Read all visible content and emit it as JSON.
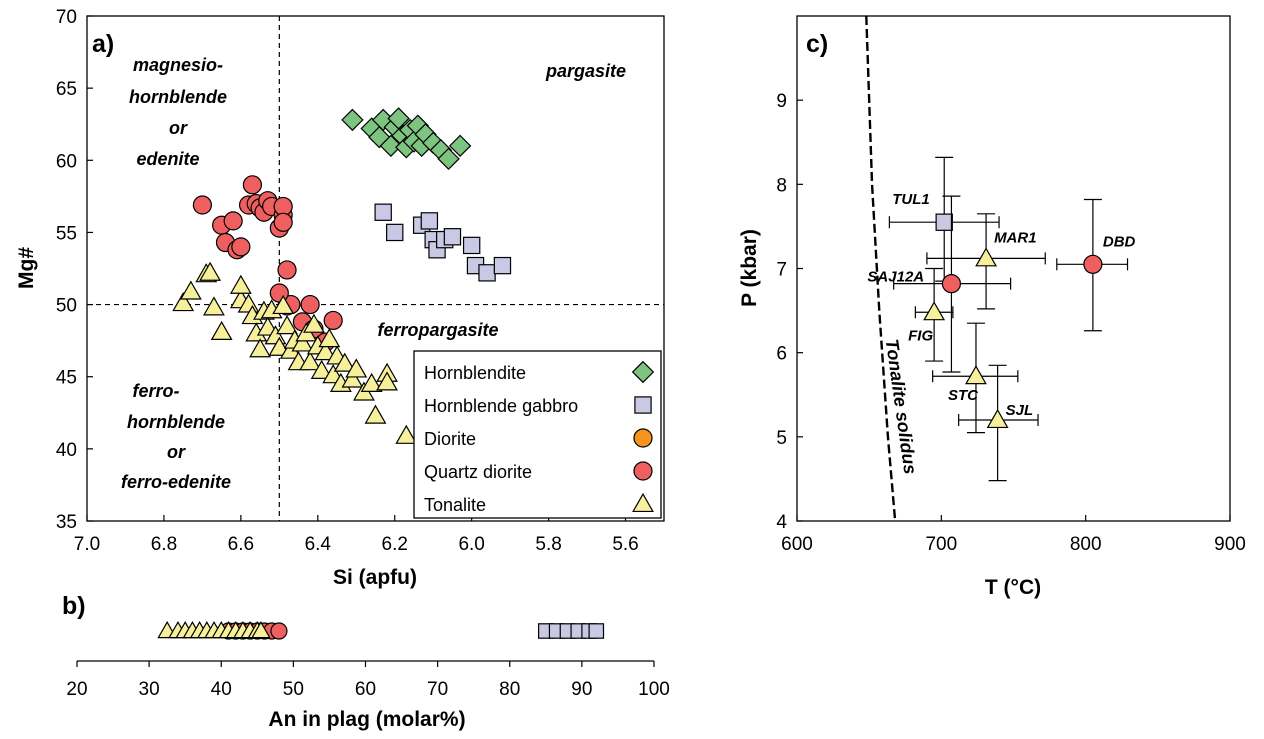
{
  "symbols": {
    "Hornblendite": {
      "shape": "diamond",
      "fill": "#7cc47f"
    },
    "Hornblende gabbro": {
      "shape": "square",
      "fill": "#c9c9e6"
    },
    "Diorite": {
      "shape": "circle",
      "fill": "#f7941d"
    },
    "Quartz diorite": {
      "shape": "circle",
      "fill": "#ef5f5f"
    },
    "Tonalite": {
      "shape": "triangle",
      "fill": "#f6f09a"
    }
  },
  "chart_data": [
    {
      "panel": "a)",
      "type": "scatter",
      "xlabel": "Si (apfu)",
      "ylabel": "Mg#",
      "xlim": [
        7.0,
        5.5
      ],
      "ylim": [
        35,
        70
      ],
      "x_reversed": true,
      "xticks": [
        "7.0",
        "6.8",
        "6.6",
        "6.4",
        "6.2",
        "6.0",
        "5.8",
        "5.6"
      ],
      "yticks": [
        "35",
        "40",
        "45",
        "50",
        "55",
        "60",
        "65",
        "70"
      ],
      "reference_lines": {
        "vertical_x": 6.5,
        "horizontal_y": 50
      },
      "field_labels": [
        {
          "lines": [
            "magnesio-",
            "hornblende",
            "or",
            "edenite"
          ]
        },
        {
          "lines": [
            "pargasite"
          ]
        },
        {
          "lines": [
            "ferropargasite"
          ]
        },
        {
          "lines": [
            "ferro-",
            "hornblende",
            "or",
            "ferro-edenite"
          ]
        }
      ],
      "legend": [
        "Hornblendite",
        "Hornblende gabbro",
        "Diorite",
        "Quartz diorite",
        "Tonalite"
      ],
      "legend_position": "bottom-right",
      "series": [
        {
          "name": "Hornblendite",
          "points": [
            [
              6.31,
              62.8
            ],
            [
              6.26,
              62.2
            ],
            [
              6.24,
              61.6
            ],
            [
              6.23,
              62.8
            ],
            [
              6.21,
              61.0
            ],
            [
              6.2,
              62.3
            ],
            [
              6.19,
              62.9
            ],
            [
              6.18,
              61.7
            ],
            [
              6.17,
              60.9
            ],
            [
              6.16,
              62.1
            ],
            [
              6.15,
              61.3
            ],
            [
              6.14,
              62.4
            ],
            [
              6.13,
              61.0
            ],
            [
              6.12,
              61.8
            ],
            [
              6.1,
              61.2
            ],
            [
              6.08,
              60.7
            ],
            [
              6.06,
              60.1
            ],
            [
              6.03,
              61.0
            ]
          ]
        },
        {
          "name": "Hornblende gabbro",
          "points": [
            [
              6.23,
              56.4
            ],
            [
              6.2,
              55.0
            ],
            [
              6.13,
              55.5
            ],
            [
              6.11,
              55.8
            ],
            [
              6.1,
              54.5
            ],
            [
              6.09,
              53.8
            ],
            [
              6.07,
              54.5
            ],
            [
              6.05,
              54.7
            ],
            [
              6.0,
              54.1
            ],
            [
              5.99,
              52.7
            ],
            [
              5.96,
              52.2
            ],
            [
              5.92,
              52.7
            ]
          ]
        },
        {
          "name": "Quartz diorite",
          "points": [
            [
              6.7,
              56.9
            ],
            [
              6.65,
              55.5
            ],
            [
              6.64,
              54.3
            ],
            [
              6.62,
              55.8
            ],
            [
              6.61,
              53.8
            ],
            [
              6.6,
              54.0
            ],
            [
              6.58,
              56.9
            ],
            [
              6.57,
              58.3
            ],
            [
              6.56,
              57.0
            ],
            [
              6.55,
              56.7
            ],
            [
              6.54,
              56.4
            ],
            [
              6.53,
              57.2
            ],
            [
              6.52,
              56.8
            ],
            [
              6.5,
              55.3
            ],
            [
              6.49,
              56.2
            ],
            [
              6.49,
              56.8
            ],
            [
              6.48,
              52.4
            ],
            [
              6.48,
              49.9
            ],
            [
              6.47,
              50.0
            ],
            [
              6.44,
              48.8
            ],
            [
              6.42,
              50.0
            ],
            [
              6.41,
              48.3
            ],
            [
              6.38,
              47.4
            ],
            [
              6.36,
              48.9
            ],
            [
              6.49,
              55.7
            ],
            [
              6.5,
              50.8
            ]
          ]
        },
        {
          "name": "Tonalite",
          "points": [
            [
              6.75,
              50.1
            ],
            [
              6.73,
              50.9
            ],
            [
              6.69,
              52.1
            ],
            [
              6.68,
              52.2
            ],
            [
              6.67,
              49.8
            ],
            [
              6.65,
              48.1
            ],
            [
              6.6,
              50.3
            ],
            [
              6.6,
              51.3
            ],
            [
              6.58,
              50.0
            ],
            [
              6.57,
              49.2
            ],
            [
              6.56,
              48.0
            ],
            [
              6.55,
              46.9
            ],
            [
              6.54,
              49.5
            ],
            [
              6.53,
              48.4
            ],
            [
              6.52,
              49.6
            ],
            [
              6.51,
              47.8
            ],
            [
              6.5,
              47.0
            ],
            [
              6.49,
              49.9
            ],
            [
              6.48,
              48.5
            ],
            [
              6.47,
              46.8
            ],
            [
              6.46,
              47.5
            ],
            [
              6.45,
              46.0
            ],
            [
              6.44,
              47.3
            ],
            [
              6.43,
              48.0
            ],
            [
              6.42,
              46.0
            ],
            [
              6.41,
              48.6
            ],
            [
              6.4,
              47.1
            ],
            [
              6.39,
              45.4
            ],
            [
              6.38,
              46.7
            ],
            [
              6.37,
              47.6
            ],
            [
              6.36,
              45.1
            ],
            [
              6.35,
              46.4
            ],
            [
              6.34,
              44.5
            ],
            [
              6.33,
              45.9
            ],
            [
              6.31,
              44.8
            ],
            [
              6.3,
              45.5
            ],
            [
              6.28,
              43.9
            ],
            [
              6.26,
              44.5
            ],
            [
              6.25,
              42.3
            ],
            [
              6.22,
              45.2
            ],
            [
              6.22,
              44.6
            ],
            [
              6.17,
              40.9
            ]
          ]
        }
      ]
    },
    {
      "panel": "b)",
      "type": "scatter",
      "xlabel": "An in plag (molar%)",
      "xlim": [
        20,
        100
      ],
      "xticks": [
        "20",
        "30",
        "40",
        "50",
        "60",
        "70",
        "80",
        "90",
        "100"
      ],
      "series": [
        {
          "name": "Tonalite",
          "x": [
            32.5,
            34,
            35,
            36,
            37,
            38,
            39,
            40,
            41,
            42,
            43,
            44,
            45,
            45.5
          ]
        },
        {
          "name": "Quartz diorite",
          "x": [
            41,
            42,
            43,
            44,
            45,
            46,
            47,
            48
          ]
        },
        {
          "name": "Hornblende gabbro",
          "x": [
            85,
            86.5,
            88,
            89.5,
            91,
            92
          ]
        }
      ]
    },
    {
      "panel": "c)",
      "type": "scatter",
      "xlabel": "T (°C)",
      "ylabel": "P (kbar)",
      "xlim": [
        600,
        900
      ],
      "ylim": [
        4,
        10
      ],
      "xticks": [
        "600",
        "700",
        "800",
        "900"
      ],
      "yticks": [
        "4",
        "5",
        "6",
        "7",
        "8",
        "9"
      ],
      "curve_label": "Tonalite solidus",
      "curve": [
        [
          648,
          10
        ],
        [
          652,
          8.0
        ],
        [
          657,
          6.5
        ],
        [
          663,
          5.0
        ],
        [
          668,
          4.0
        ]
      ],
      "points": [
        {
          "label": "TUL1",
          "series": "Hornblende gabbro",
          "t": 702,
          "p": 7.55,
          "t_err": [
            664,
            740
          ],
          "p_err": [
            6.85,
            8.32
          ]
        },
        {
          "label": "MAR1",
          "series": "Tonalite",
          "t": 731,
          "p": 7.12,
          "t_err": [
            690,
            772
          ],
          "p_err": [
            6.52,
            7.65
          ]
        },
        {
          "label": "DBD",
          "series": "Quartz diorite",
          "t": 805,
          "p": 7.05,
          "t_err": [
            780,
            829
          ],
          "p_err": [
            6.26,
            7.82
          ]
        },
        {
          "label": "SAJ12A",
          "series": "Quartz diorite",
          "t": 707,
          "p": 6.82,
          "t_err": [
            667,
            748
          ],
          "p_err": [
            5.77,
            7.86
          ]
        },
        {
          "label": "FIG",
          "series": "Tonalite",
          "t": 695,
          "p": 6.48,
          "t_err": [
            682,
            708
          ],
          "p_err": [
            5.9,
            7.0
          ]
        },
        {
          "label": "STC",
          "series": "Tonalite",
          "t": 724,
          "p": 5.72,
          "t_err": [
            694,
            753
          ],
          "p_err": [
            5.05,
            6.35
          ]
        },
        {
          "label": "SJL",
          "series": "Tonalite",
          "t": 739,
          "p": 5.2,
          "t_err": [
            712,
            767
          ],
          "p_err": [
            4.48,
            5.85
          ]
        }
      ]
    }
  ]
}
